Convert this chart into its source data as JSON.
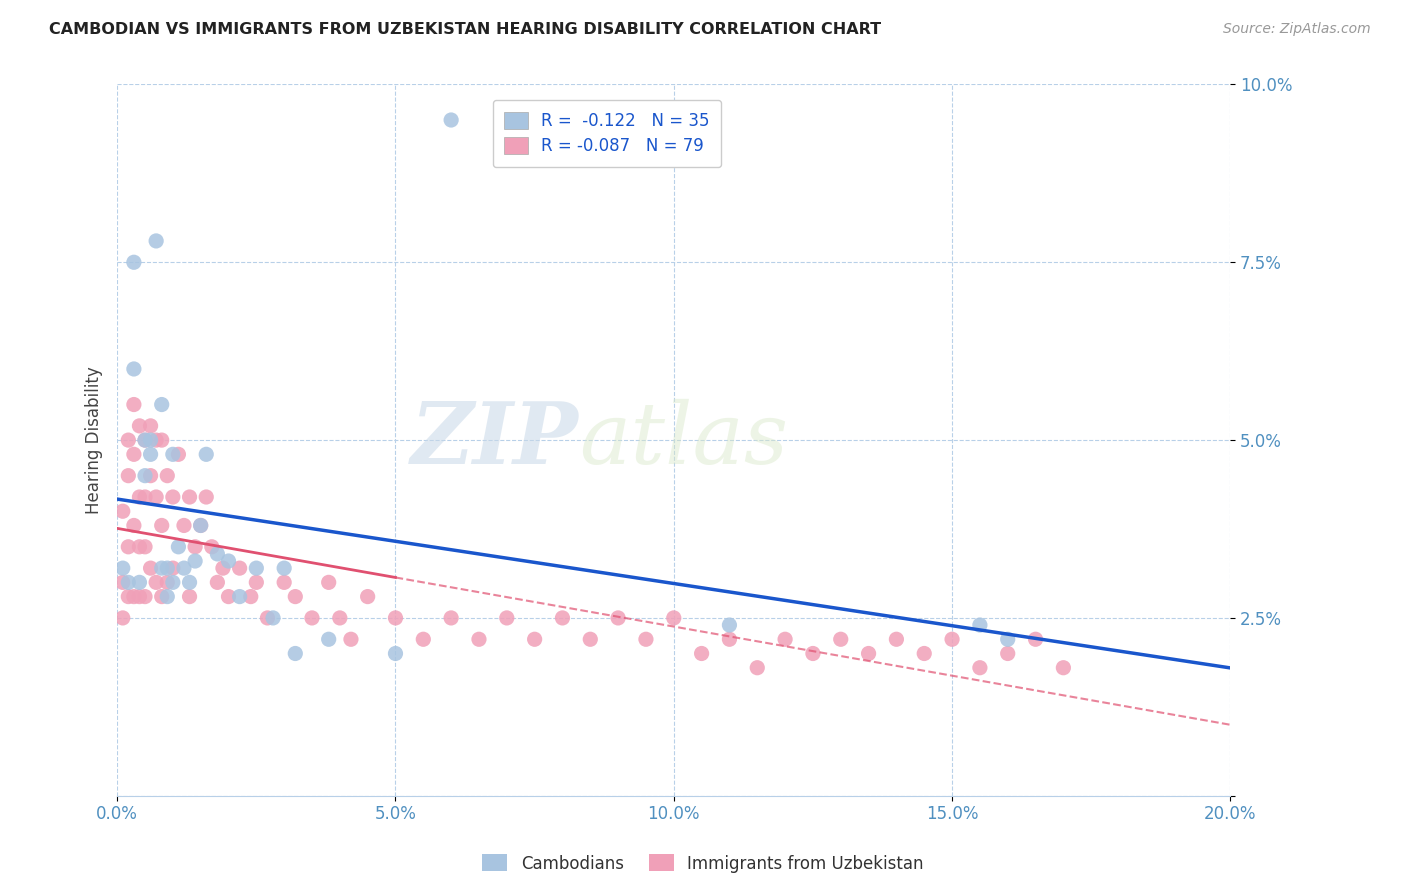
{
  "title": "CAMBODIAN VS IMMIGRANTS FROM UZBEKISTAN HEARING DISABILITY CORRELATION CHART",
  "source": "Source: ZipAtlas.com",
  "ylabel": "Hearing Disability",
  "xlim": [
    0,
    0.2
  ],
  "ylim": [
    0,
    0.1
  ],
  "xticks": [
    0.0,
    0.05,
    0.1,
    0.15,
    0.2
  ],
  "yticks": [
    0.0,
    0.025,
    0.05,
    0.075,
    0.1
  ],
  "xtick_labels": [
    "0.0%",
    "5.0%",
    "10.0%",
    "15.0%",
    "20.0%"
  ],
  "ytick_labels": [
    "",
    "2.5%",
    "5.0%",
    "7.5%",
    "10.0%"
  ],
  "cambodian_color": "#a8c4e0",
  "uzbekistan_color": "#f0a0b8",
  "cambodian_line_color": "#1a56cc",
  "uzbekistan_line_color": "#e05070",
  "legend_R_cambodian": "R =  -0.122   N = 35",
  "legend_R_uzbekistan": "R = -0.087   N = 79",
  "watermark_zip": "ZIP",
  "watermark_atlas": "atlas",
  "cam_x": [
    0.001,
    0.002,
    0.003,
    0.003,
    0.004,
    0.005,
    0.005,
    0.006,
    0.006,
    0.007,
    0.008,
    0.008,
    0.009,
    0.009,
    0.01,
    0.01,
    0.011,
    0.012,
    0.013,
    0.014,
    0.015,
    0.016,
    0.018,
    0.02,
    0.022,
    0.025,
    0.028,
    0.03,
    0.032,
    0.038,
    0.05,
    0.06,
    0.11,
    0.155,
    0.16
  ],
  "cam_y": [
    0.032,
    0.03,
    0.075,
    0.06,
    0.03,
    0.05,
    0.045,
    0.05,
    0.048,
    0.078,
    0.032,
    0.055,
    0.028,
    0.032,
    0.03,
    0.048,
    0.035,
    0.032,
    0.03,
    0.033,
    0.038,
    0.048,
    0.034,
    0.033,
    0.028,
    0.032,
    0.025,
    0.032,
    0.02,
    0.022,
    0.02,
    0.095,
    0.024,
    0.024,
    0.022
  ],
  "uzb_x": [
    0.001,
    0.001,
    0.001,
    0.002,
    0.002,
    0.002,
    0.002,
    0.003,
    0.003,
    0.003,
    0.003,
    0.004,
    0.004,
    0.004,
    0.004,
    0.005,
    0.005,
    0.005,
    0.005,
    0.006,
    0.006,
    0.006,
    0.007,
    0.007,
    0.007,
    0.008,
    0.008,
    0.008,
    0.009,
    0.009,
    0.01,
    0.01,
    0.011,
    0.012,
    0.013,
    0.013,
    0.014,
    0.015,
    0.016,
    0.017,
    0.018,
    0.019,
    0.02,
    0.022,
    0.024,
    0.025,
    0.027,
    0.03,
    0.032,
    0.035,
    0.038,
    0.04,
    0.042,
    0.045,
    0.05,
    0.055,
    0.06,
    0.065,
    0.07,
    0.075,
    0.08,
    0.085,
    0.09,
    0.095,
    0.1,
    0.105,
    0.11,
    0.115,
    0.12,
    0.125,
    0.13,
    0.135,
    0.14,
    0.145,
    0.15,
    0.155,
    0.16,
    0.165,
    0.17
  ],
  "uzb_y": [
    0.04,
    0.03,
    0.025,
    0.05,
    0.045,
    0.035,
    0.028,
    0.055,
    0.048,
    0.038,
    0.028,
    0.052,
    0.042,
    0.035,
    0.028,
    0.05,
    0.042,
    0.035,
    0.028,
    0.052,
    0.045,
    0.032,
    0.05,
    0.042,
    0.03,
    0.05,
    0.038,
    0.028,
    0.045,
    0.03,
    0.042,
    0.032,
    0.048,
    0.038,
    0.042,
    0.028,
    0.035,
    0.038,
    0.042,
    0.035,
    0.03,
    0.032,
    0.028,
    0.032,
    0.028,
    0.03,
    0.025,
    0.03,
    0.028,
    0.025,
    0.03,
    0.025,
    0.022,
    0.028,
    0.025,
    0.022,
    0.025,
    0.022,
    0.025,
    0.022,
    0.025,
    0.022,
    0.025,
    0.022,
    0.025,
    0.02,
    0.022,
    0.018,
    0.022,
    0.02,
    0.022,
    0.02,
    0.022,
    0.02,
    0.022,
    0.018,
    0.02,
    0.022,
    0.018
  ]
}
